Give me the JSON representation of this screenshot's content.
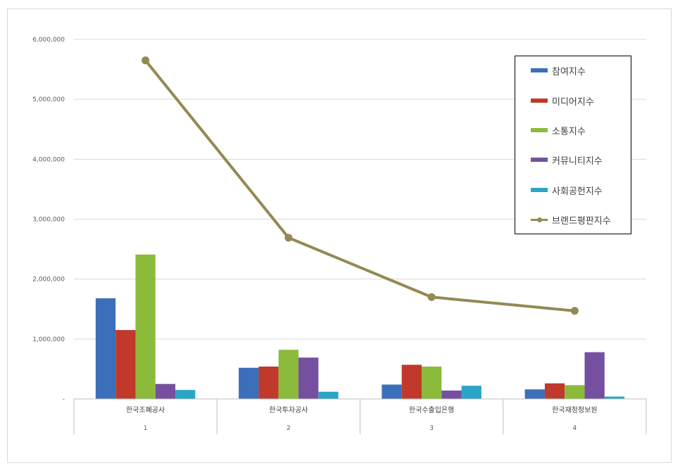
{
  "chart_data": {
    "type": "bar",
    "categories": [
      "한국조폐공사",
      "한국투자공사",
      "한국수출입은행",
      "한국재정정보원"
    ],
    "category_numbers": [
      "1",
      "2",
      "3",
      "4"
    ],
    "series": [
      {
        "name": "참여지수",
        "type": "bar",
        "color": "#3b6fba",
        "values": [
          1680000,
          520000,
          240000,
          160000
        ]
      },
      {
        "name": "미디어지수",
        "type": "bar",
        "color": "#c0392b",
        "values": [
          1150000,
          540000,
          570000,
          260000
        ]
      },
      {
        "name": "소통지수",
        "type": "bar",
        "color": "#8cbb3c",
        "values": [
          2410000,
          820000,
          540000,
          230000
        ]
      },
      {
        "name": "커뮤니티지수",
        "type": "bar",
        "color": "#7550a0",
        "values": [
          250000,
          690000,
          140000,
          780000
        ]
      },
      {
        "name": "사회공헌지수",
        "type": "bar",
        "color": "#2aa5c8",
        "values": [
          150000,
          120000,
          220000,
          40000
        ]
      },
      {
        "name": "브랜드평판지수",
        "type": "line",
        "color": "#938953",
        "values": [
          5650000,
          2690000,
          1700000,
          1470000
        ]
      }
    ],
    "yticks": [
      "-",
      "1,000,000",
      "2,000,000",
      "3,000,000",
      "4,000,000",
      "5,000,000",
      "6,000,000"
    ],
    "ylim": [
      0,
      6000000
    ],
    "title": "",
    "xlabel": "",
    "ylabel": "",
    "grid": true,
    "legend_position": "top-right"
  }
}
